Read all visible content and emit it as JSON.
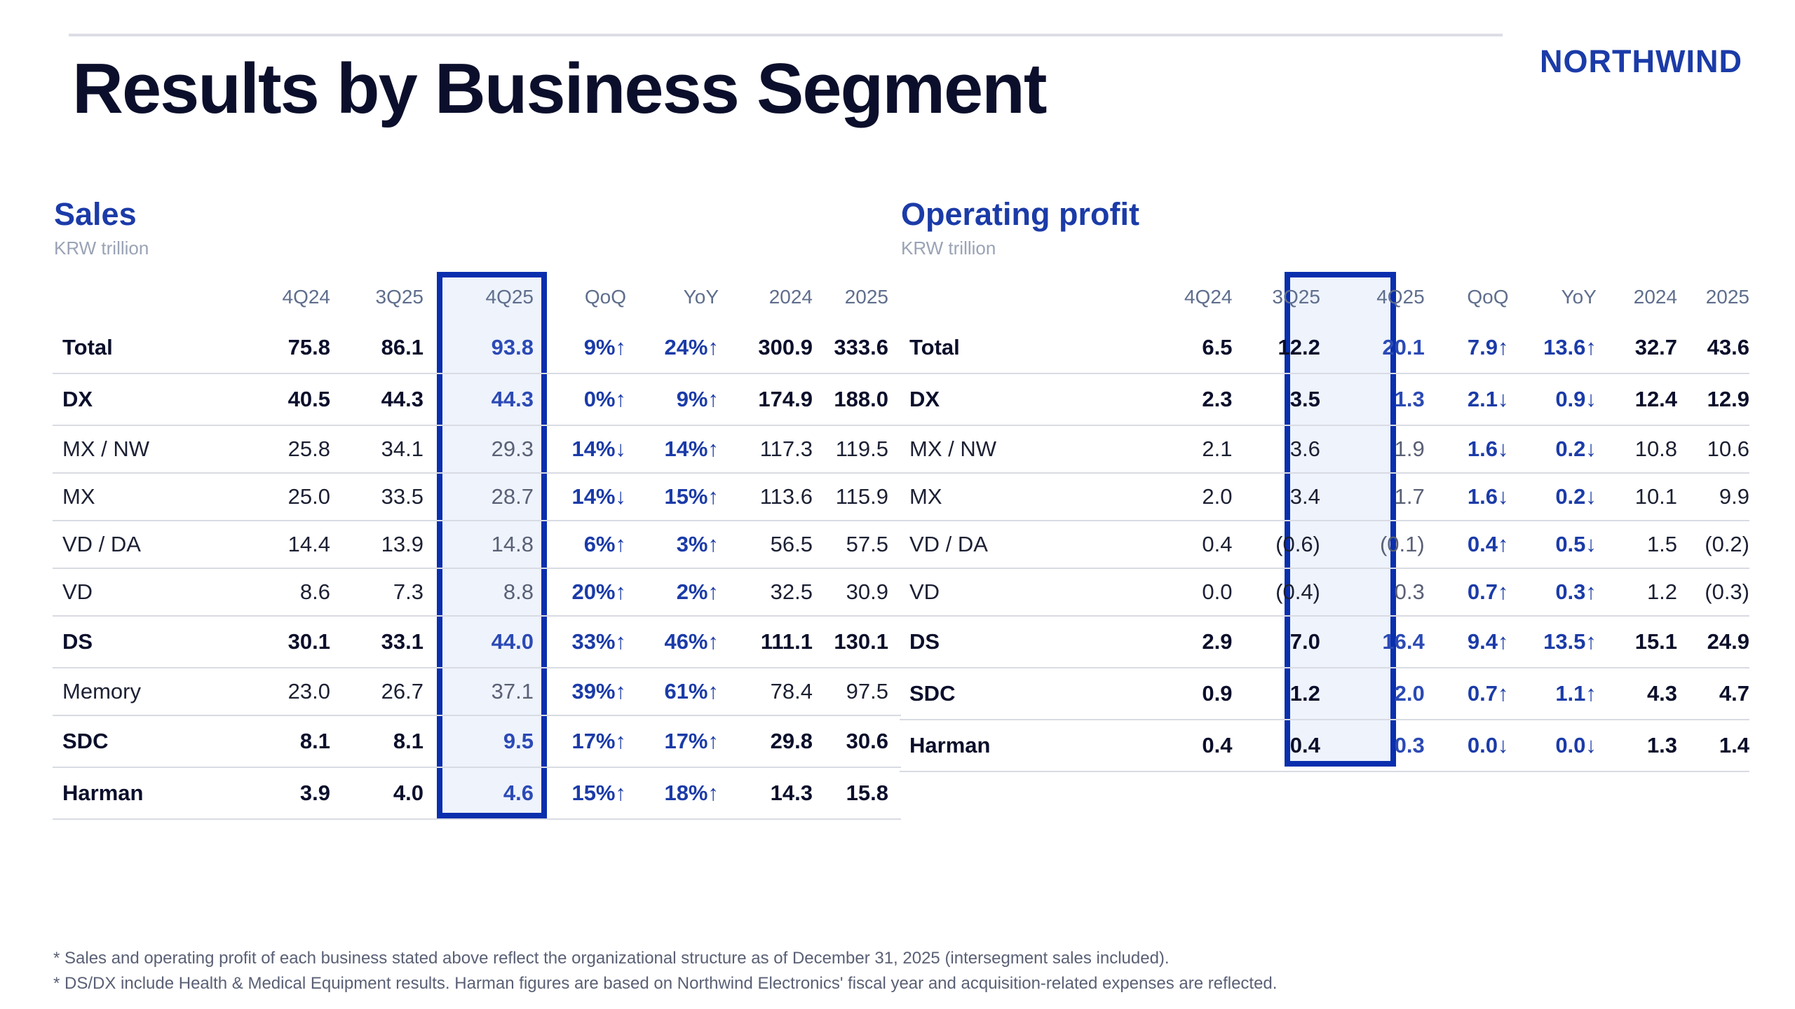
{
  "brand": "NORTHWIND",
  "title": "Results by Business Segment",
  "columns": [
    "4Q24",
    "3Q25",
    "4Q25",
    "QoQ",
    "YoY",
    "2024",
    "2025"
  ],
  "sales": {
    "title": "Sales",
    "unit": "KRW trillion",
    "rows": [
      {
        "label": "Total",
        "bold": true,
        "values": [
          "75.8",
          "86.1",
          "93.8",
          "9%↑",
          "24%↑",
          "300.9",
          "333.6"
        ]
      },
      {
        "label": "DX",
        "bold": true,
        "values": [
          "40.5",
          "44.3",
          "44.3",
          "0%↑",
          "9%↑",
          "174.9",
          "188.0"
        ]
      },
      {
        "label": "MX / NW",
        "bold": false,
        "values": [
          "25.8",
          "34.1",
          "29.3",
          "14%↓",
          "14%↑",
          "117.3",
          "119.5"
        ]
      },
      {
        "label": "MX",
        "bold": false,
        "values": [
          "25.0",
          "33.5",
          "28.7",
          "14%↓",
          "15%↑",
          "113.6",
          "115.9"
        ]
      },
      {
        "label": "VD / DA",
        "bold": false,
        "values": [
          "14.4",
          "13.9",
          "14.8",
          "6%↑",
          "3%↑",
          "56.5",
          "57.5"
        ]
      },
      {
        "label": "VD",
        "bold": false,
        "values": [
          "8.6",
          "7.3",
          "8.8",
          "20%↑",
          "2%↑",
          "32.5",
          "30.9"
        ]
      },
      {
        "label": "DS",
        "bold": true,
        "values": [
          "30.1",
          "33.1",
          "44.0",
          "33%↑",
          "46%↑",
          "111.1",
          "130.1"
        ]
      },
      {
        "label": "Memory",
        "bold": false,
        "values": [
          "23.0",
          "26.7",
          "37.1",
          "39%↑",
          "61%↑",
          "78.4",
          "97.5"
        ]
      },
      {
        "label": "SDC",
        "bold": true,
        "values": [
          "8.1",
          "8.1",
          "9.5",
          "17%↑",
          "17%↑",
          "29.8",
          "30.6"
        ]
      },
      {
        "label": "Harman",
        "bold": true,
        "values": [
          "3.9",
          "4.0",
          "4.6",
          "15%↑",
          "18%↑",
          "14.3",
          "15.8"
        ]
      }
    ]
  },
  "operating_profit": {
    "title": "Operating profit",
    "unit": "KRW trillion",
    "rows": [
      {
        "label": "Total",
        "bold": true,
        "values": [
          "6.5",
          "12.2",
          "20.1",
          "7.9↑",
          "13.6↑",
          "32.7",
          "43.6"
        ]
      },
      {
        "label": "DX",
        "bold": true,
        "values": [
          "2.3",
          "3.5",
          "1.3",
          "2.1↓",
          "0.9↓",
          "12.4",
          "12.9"
        ]
      },
      {
        "label": "MX / NW",
        "bold": false,
        "values": [
          "2.1",
          "3.6",
          "1.9",
          "1.6↓",
          "0.2↓",
          "10.8",
          "10.6"
        ]
      },
      {
        "label": "MX",
        "bold": false,
        "values": [
          "2.0",
          "3.4",
          "1.7",
          "1.6↓",
          "0.2↓",
          "10.1",
          "9.9"
        ]
      },
      {
        "label": "VD / DA",
        "bold": false,
        "values": [
          "0.4",
          "(0.6)",
          "(0.1)",
          "0.4↑",
          "0.5↓",
          "1.5",
          "(0.2)"
        ]
      },
      {
        "label": "VD",
        "bold": false,
        "values": [
          "0.0",
          "(0.4)",
          "0.3",
          "0.7↑",
          "0.3↑",
          "1.2",
          "(0.3)"
        ]
      },
      {
        "label": "DS",
        "bold": true,
        "values": [
          "2.9",
          "7.0",
          "16.4",
          "9.4↑",
          "13.5↑",
          "15.1",
          "24.9"
        ]
      },
      {
        "label": "SDC",
        "bold": true,
        "values": [
          "0.9",
          "1.2",
          "2.0",
          "0.7↑",
          "1.1↑",
          "4.3",
          "4.7"
        ]
      },
      {
        "label": "Harman",
        "bold": true,
        "values": [
          "0.4",
          "0.4",
          "0.3",
          "0.0↓",
          "0.0↓",
          "1.3",
          "1.4"
        ]
      }
    ]
  },
  "footnotes": [
    "* Sales and operating profit of each business stated above reflect the organizational structure as of December 31, 2025 (intersegment sales included).",
    "* DS/DX include Health & Medical Equipment results. Harman figures are based on Northwind Electronics' fiscal year and acquisition-related expenses are reflected."
  ],
  "colors": {
    "accent": "#1b3ba8",
    "highlight_border": "#0a2fae",
    "highlight_fill": "#eef3fc",
    "title": "#0b0f2b"
  }
}
